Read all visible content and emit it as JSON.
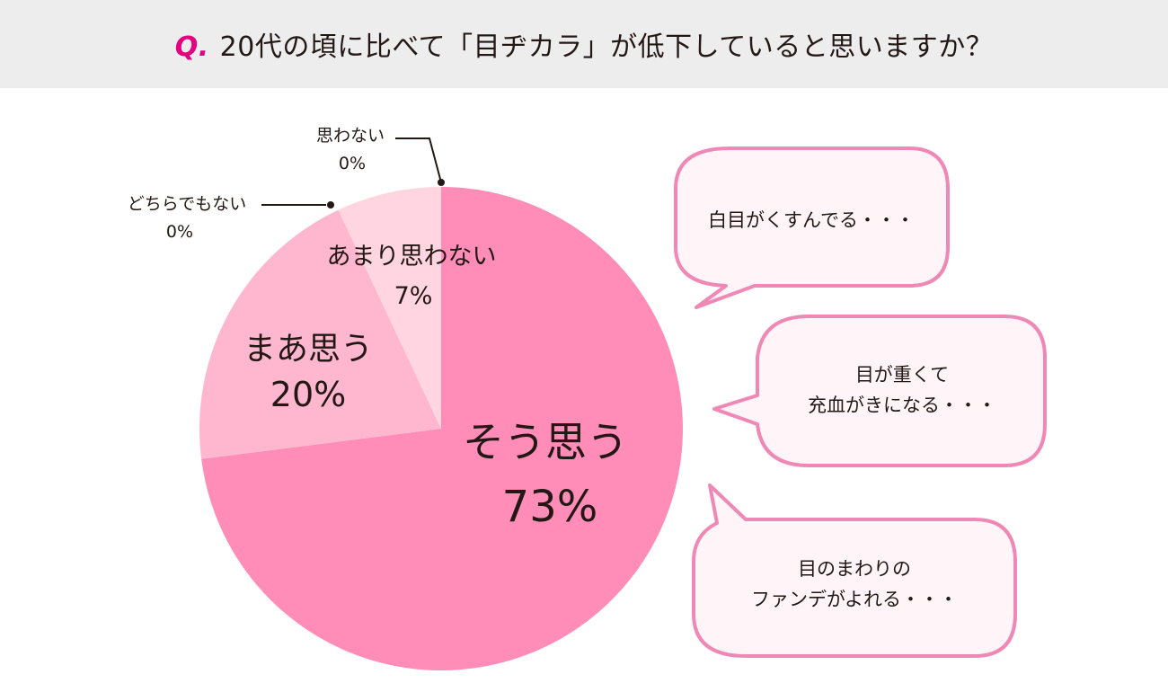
{
  "header": {
    "prefix": "Q.",
    "question": "20代の頃に比べて「目ヂカラ」が低下していると思いますか？"
  },
  "colors": {
    "accent": "#e4007f",
    "slice_1": "#ff8db8",
    "slice_2": "#ffb7cf",
    "slice_3": "#ffd5e1",
    "bubble_border": "#f088b6",
    "bubble_fill": "#fff4f7"
  },
  "chart_data": {
    "type": "pie",
    "start": "top",
    "direction": "clockwise",
    "slices": [
      {
        "label": "そう思う",
        "value": 73,
        "value_label": "73%"
      },
      {
        "label": "まあ思う",
        "value": 20,
        "value_label": "20%"
      },
      {
        "label": "どちらでもない",
        "value": 0,
        "value_label": "0%"
      },
      {
        "label": "あまり思わない",
        "value": 7,
        "value_label": "7%"
      },
      {
        "label": "思わない",
        "value": 0,
        "value_label": "0%"
      }
    ]
  },
  "comments": [
    {
      "lines": [
        "白目がくすんでる・・・"
      ]
    },
    {
      "lines": [
        "目が重くて",
        "充血がきになる・・・"
      ]
    },
    {
      "lines": [
        "目のまわりの",
        "ファンデがよれる・・・"
      ]
    }
  ]
}
